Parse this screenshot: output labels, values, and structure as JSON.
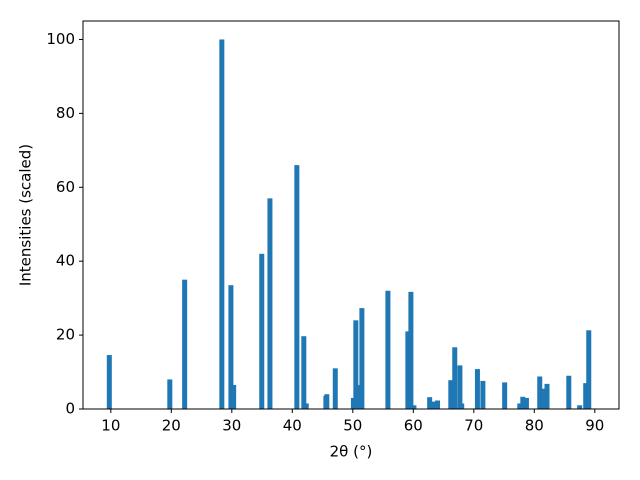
{
  "chart_data": {
    "type": "bar",
    "x_label": "2θ (°)",
    "y_label": "Intensities (scaled)",
    "color": "#1f77b4",
    "grid": false,
    "x": [
      9.75,
      19.75,
      22.2,
      28.35,
      29.85,
      30.3,
      34.95,
      36.3,
      40.75,
      41.9,
      42.3,
      45.55,
      45.7,
      47.1,
      50.1,
      50.5,
      51.0,
      51.5,
      55.8,
      59.1,
      59.6,
      60.1,
      62.7,
      63.2,
      64.0,
      66.2,
      66.85,
      67.7,
      68.0,
      70.6,
      71.5,
      75.1,
      77.6,
      78.1,
      78.7,
      80.9,
      81.5,
      82.1,
      85.7,
      87.5,
      88.5,
      89.0
    ],
    "values": [
      14.6,
      8,
      35,
      100,
      33.5,
      6.5,
      42,
      57,
      66,
      19.7,
      1.5,
      3.5,
      4,
      11,
      3,
      24,
      6.5,
      27.3,
      32,
      21,
      31.7,
      1,
      3.2,
      2,
      2.3,
      7.8,
      16.7,
      11.8,
      1.5,
      10.8,
      7.6,
      7.2,
      1.5,
      3.3,
      3.0,
      8.8,
      5.5,
      6.8,
      9.0,
      1.0,
      7,
      21.3
    ],
    "xlim": [
      5.4,
      94
    ],
    "ylim": [
      0,
      105
    ],
    "xticks": [
      10,
      20,
      30,
      40,
      50,
      60,
      70,
      80,
      90
    ],
    "yticks": [
      0,
      20,
      40,
      60,
      80,
      100
    ]
  }
}
